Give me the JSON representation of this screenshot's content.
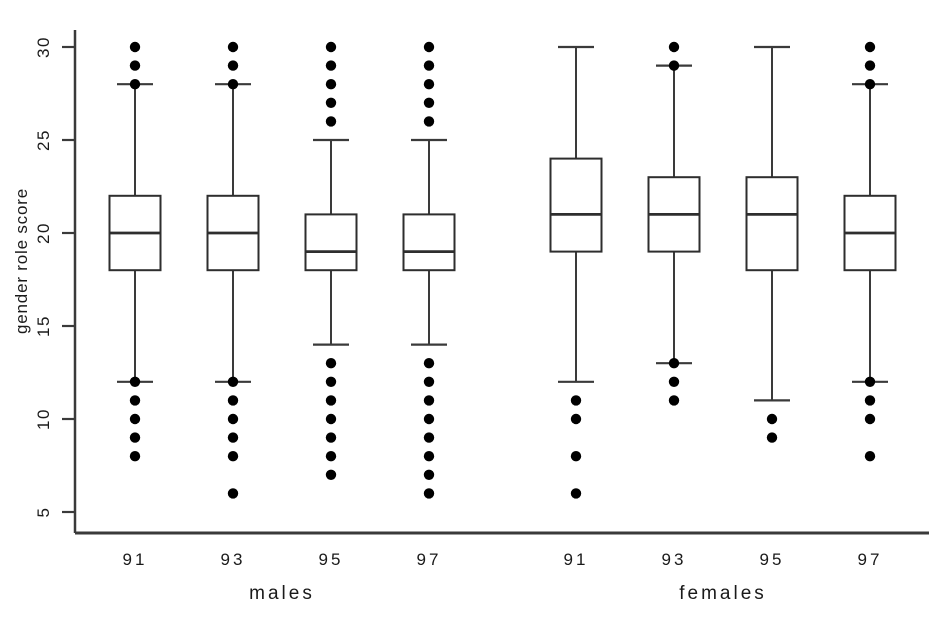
{
  "chart": {
    "background": "#ffffff",
    "axis_color": "#3a3a3a",
    "box_stroke_color": "#2e2e2e",
    "box_fill_color": "#ffffff",
    "median_color": "#2e2e2e",
    "dot_color": "#000000",
    "text_color": "#1a1a1a"
  },
  "chart_data": {
    "type": "boxplot",
    "title": "",
    "xlabel": "",
    "ylabel": "gender role score",
    "ylim": [
      4,
      31
    ],
    "yticks": [
      30,
      25,
      20,
      15,
      10,
      5
    ],
    "grid": false,
    "legend": false,
    "groups": [
      {
        "label": "males",
        "boxes": [
          {
            "year": "91",
            "q1": 18,
            "median": 20,
            "q3": 22,
            "whisker_low": 12,
            "whisker_high": 28,
            "outliers_high": [
              29,
              30
            ],
            "outliers_low": [
              11,
              10,
              9,
              8
            ],
            "dot_on_high_cap": true,
            "dot_on_low_cap": true
          },
          {
            "year": "93",
            "q1": 18,
            "median": 20,
            "q3": 22,
            "whisker_low": 12,
            "whisker_high": 28,
            "outliers_high": [
              29,
              30
            ],
            "outliers_low": [
              11,
              10,
              9,
              8,
              6
            ],
            "dot_on_high_cap": true,
            "dot_on_low_cap": true
          },
          {
            "year": "95",
            "q1": 18,
            "median": 19,
            "q3": 21,
            "whisker_low": 14,
            "whisker_high": 25,
            "outliers_high": [
              26,
              27,
              28,
              29,
              30
            ],
            "outliers_low": [
              13,
              12,
              11,
              10,
              9,
              8,
              7
            ],
            "dot_on_high_cap": false,
            "dot_on_low_cap": false
          },
          {
            "year": "97",
            "q1": 18,
            "median": 19,
            "q3": 21,
            "whisker_low": 14,
            "whisker_high": 25,
            "outliers_high": [
              26,
              27,
              28,
              29,
              30
            ],
            "outliers_low": [
              13,
              12,
              11,
              10,
              9,
              8,
              7,
              6
            ],
            "dot_on_high_cap": false,
            "dot_on_low_cap": false
          }
        ]
      },
      {
        "label": "females",
        "boxes": [
          {
            "year": "91",
            "q1": 19,
            "median": 21,
            "q3": 24,
            "whisker_low": 12,
            "whisker_high": 30,
            "outliers_high": [],
            "outliers_low": [
              11,
              10,
              8,
              6
            ],
            "dot_on_high_cap": false,
            "dot_on_low_cap": false
          },
          {
            "year": "93",
            "q1": 19,
            "median": 21,
            "q3": 23,
            "whisker_low": 13,
            "whisker_high": 29,
            "outliers_high": [
              30
            ],
            "outliers_low": [
              12,
              11
            ],
            "dot_on_high_cap": true,
            "dot_on_low_cap": true
          },
          {
            "year": "95",
            "q1": 18,
            "median": 21,
            "q3": 23,
            "whisker_low": 11,
            "whisker_high": 30,
            "outliers_high": [],
            "outliers_low": [
              10,
              9
            ],
            "dot_on_high_cap": false,
            "dot_on_low_cap": false
          },
          {
            "year": "97",
            "q1": 18,
            "median": 20,
            "q3": 22,
            "whisker_low": 12,
            "whisker_high": 28,
            "outliers_high": [
              29,
              30
            ],
            "outliers_low": [
              11,
              10,
              8
            ],
            "dot_on_high_cap": true,
            "dot_on_low_cap": true
          }
        ]
      }
    ]
  }
}
